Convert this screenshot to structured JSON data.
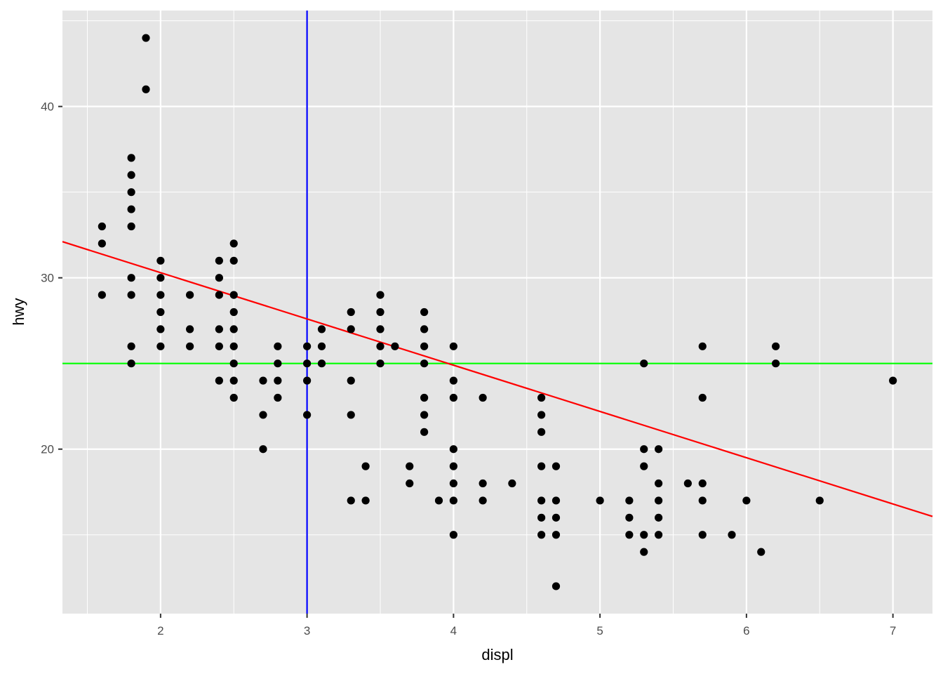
{
  "chart_data": {
    "type": "scatter",
    "xlabel": "displ",
    "ylabel": "hwy",
    "xlim": [
      1.33,
      7.27
    ],
    "ylim": [
      10.4,
      45.6
    ],
    "x_ticks": [
      2,
      3,
      4,
      5,
      6,
      7
    ],
    "y_ticks": [
      20,
      30,
      40
    ],
    "x_minor_ticks": [
      1.5,
      2.5,
      3.5,
      4.5,
      5.5,
      6.5
    ],
    "y_minor_ticks": [
      15,
      25,
      35,
      45
    ],
    "grid": true,
    "colors": {
      "panel": "#e5e5e5",
      "grid": "#ffffff",
      "points": "#000000",
      "hline": "#00ff00",
      "vline": "#0000ff",
      "trend": "#ff0000"
    },
    "reference_lines": {
      "hline_y": 25,
      "vline_x": 3,
      "trend": {
        "intercept": 35.7,
        "slope": -2.7
      }
    },
    "points": [
      [
        1.6,
        33
      ],
      [
        1.6,
        32
      ],
      [
        1.6,
        29
      ],
      [
        1.8,
        37
      ],
      [
        1.8,
        36
      ],
      [
        1.8,
        35
      ],
      [
        1.8,
        34
      ],
      [
        1.8,
        33
      ],
      [
        1.8,
        30
      ],
      [
        1.8,
        29
      ],
      [
        1.8,
        26
      ],
      [
        1.8,
        25
      ],
      [
        1.9,
        44
      ],
      [
        1.9,
        41
      ],
      [
        2.0,
        31
      ],
      [
        2.0,
        30
      ],
      [
        2.0,
        29
      ],
      [
        2.0,
        28
      ],
      [
        2.0,
        27
      ],
      [
        2.0,
        26
      ],
      [
        2.2,
        29
      ],
      [
        2.2,
        27
      ],
      [
        2.2,
        26
      ],
      [
        2.4,
        31
      ],
      [
        2.4,
        30
      ],
      [
        2.4,
        29
      ],
      [
        2.4,
        27
      ],
      [
        2.4,
        26
      ],
      [
        2.4,
        24
      ],
      [
        2.5,
        32
      ],
      [
        2.5,
        31
      ],
      [
        2.5,
        29
      ],
      [
        2.5,
        28
      ],
      [
        2.5,
        27
      ],
      [
        2.5,
        26
      ],
      [
        2.5,
        25
      ],
      [
        2.5,
        24
      ],
      [
        2.5,
        23
      ],
      [
        2.7,
        24
      ],
      [
        2.7,
        22
      ],
      [
        2.7,
        20
      ],
      [
        2.8,
        26
      ],
      [
        2.8,
        25
      ],
      [
        2.8,
        24
      ],
      [
        2.8,
        23
      ],
      [
        3.0,
        26
      ],
      [
        3.0,
        25
      ],
      [
        3.0,
        24
      ],
      [
        3.0,
        22
      ],
      [
        3.1,
        27
      ],
      [
        3.1,
        26
      ],
      [
        3.1,
        25
      ],
      [
        3.3,
        28
      ],
      [
        3.3,
        27
      ],
      [
        3.3,
        24
      ],
      [
        3.3,
        22
      ],
      [
        3.3,
        17
      ],
      [
        3.4,
        19
      ],
      [
        3.4,
        17
      ],
      [
        3.5,
        29
      ],
      [
        3.5,
        28
      ],
      [
        3.5,
        27
      ],
      [
        3.5,
        26
      ],
      [
        3.5,
        25
      ],
      [
        3.6,
        26
      ],
      [
        3.7,
        19
      ],
      [
        3.7,
        18
      ],
      [
        3.8,
        28
      ],
      [
        3.8,
        27
      ],
      [
        3.8,
        26
      ],
      [
        3.8,
        25
      ],
      [
        3.8,
        23
      ],
      [
        3.8,
        22
      ],
      [
        3.8,
        21
      ],
      [
        3.9,
        17
      ],
      [
        4.0,
        26
      ],
      [
        4.0,
        24
      ],
      [
        4.0,
        23
      ],
      [
        4.0,
        20
      ],
      [
        4.0,
        19
      ],
      [
        4.0,
        18
      ],
      [
        4.0,
        17
      ],
      [
        4.0,
        15
      ],
      [
        4.2,
        23
      ],
      [
        4.2,
        18
      ],
      [
        4.2,
        17
      ],
      [
        4.4,
        18
      ],
      [
        4.6,
        23
      ],
      [
        4.6,
        22
      ],
      [
        4.6,
        21
      ],
      [
        4.6,
        19
      ],
      [
        4.6,
        17
      ],
      [
        4.6,
        16
      ],
      [
        4.6,
        15
      ],
      [
        4.7,
        19
      ],
      [
        4.7,
        17
      ],
      [
        4.7,
        16
      ],
      [
        4.7,
        15
      ],
      [
        4.7,
        12
      ],
      [
        5.0,
        17
      ],
      [
        5.2,
        17
      ],
      [
        5.2,
        16
      ],
      [
        5.2,
        15
      ],
      [
        5.3,
        25
      ],
      [
        5.3,
        20
      ],
      [
        5.3,
        19
      ],
      [
        5.3,
        15
      ],
      [
        5.3,
        14
      ],
      [
        5.4,
        20
      ],
      [
        5.4,
        18
      ],
      [
        5.4,
        17
      ],
      [
        5.4,
        16
      ],
      [
        5.4,
        15
      ],
      [
        5.6,
        18
      ],
      [
        5.7,
        26
      ],
      [
        5.7,
        23
      ],
      [
        5.7,
        18
      ],
      [
        5.7,
        17
      ],
      [
        5.7,
        15
      ],
      [
        5.9,
        15
      ],
      [
        6.0,
        17
      ],
      [
        6.1,
        14
      ],
      [
        6.2,
        26
      ],
      [
        6.2,
        25
      ],
      [
        6.5,
        17
      ],
      [
        7.0,
        24
      ]
    ]
  }
}
